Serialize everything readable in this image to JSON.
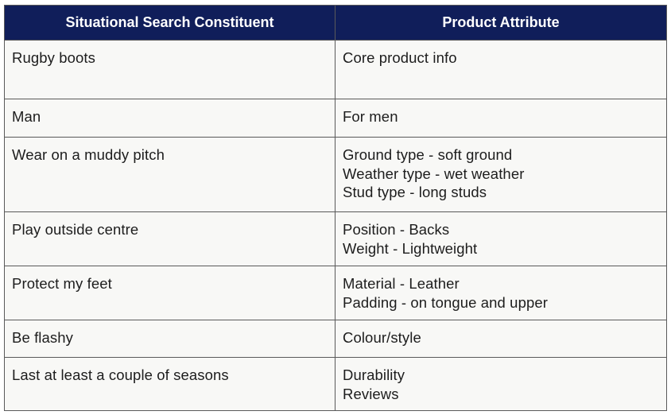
{
  "table": {
    "headers": [
      "Situational Search Constituent",
      "Product Attribute"
    ],
    "rows": [
      {
        "constituent": "Rugby boots",
        "attributes": [
          "Core product info"
        ]
      },
      {
        "constituent": "Man",
        "attributes": [
          "For men"
        ]
      },
      {
        "constituent": "Wear on a muddy pitch",
        "attributes": [
          "Ground type - soft ground",
          "Weather type - wet weather",
          "Stud type - long studs"
        ]
      },
      {
        "constituent": "Play outside centre",
        "attributes": [
          "Position - Backs",
          "Weight - Lightweight"
        ]
      },
      {
        "constituent": "Protect my feet",
        "attributes": [
          "Material - Leather",
          "Padding - on tongue and upper"
        ]
      },
      {
        "constituent": "Be flashy",
        "attributes": [
          "Colour/style"
        ]
      },
      {
        "constituent": "Last at least a couple of seasons",
        "attributes": [
          "Durability",
          "Reviews"
        ]
      }
    ]
  },
  "colors": {
    "header_bg": "#101e5a",
    "header_text": "#ffffff",
    "cell_bg": "#f8f8f6",
    "border": "#5a5a5a"
  }
}
